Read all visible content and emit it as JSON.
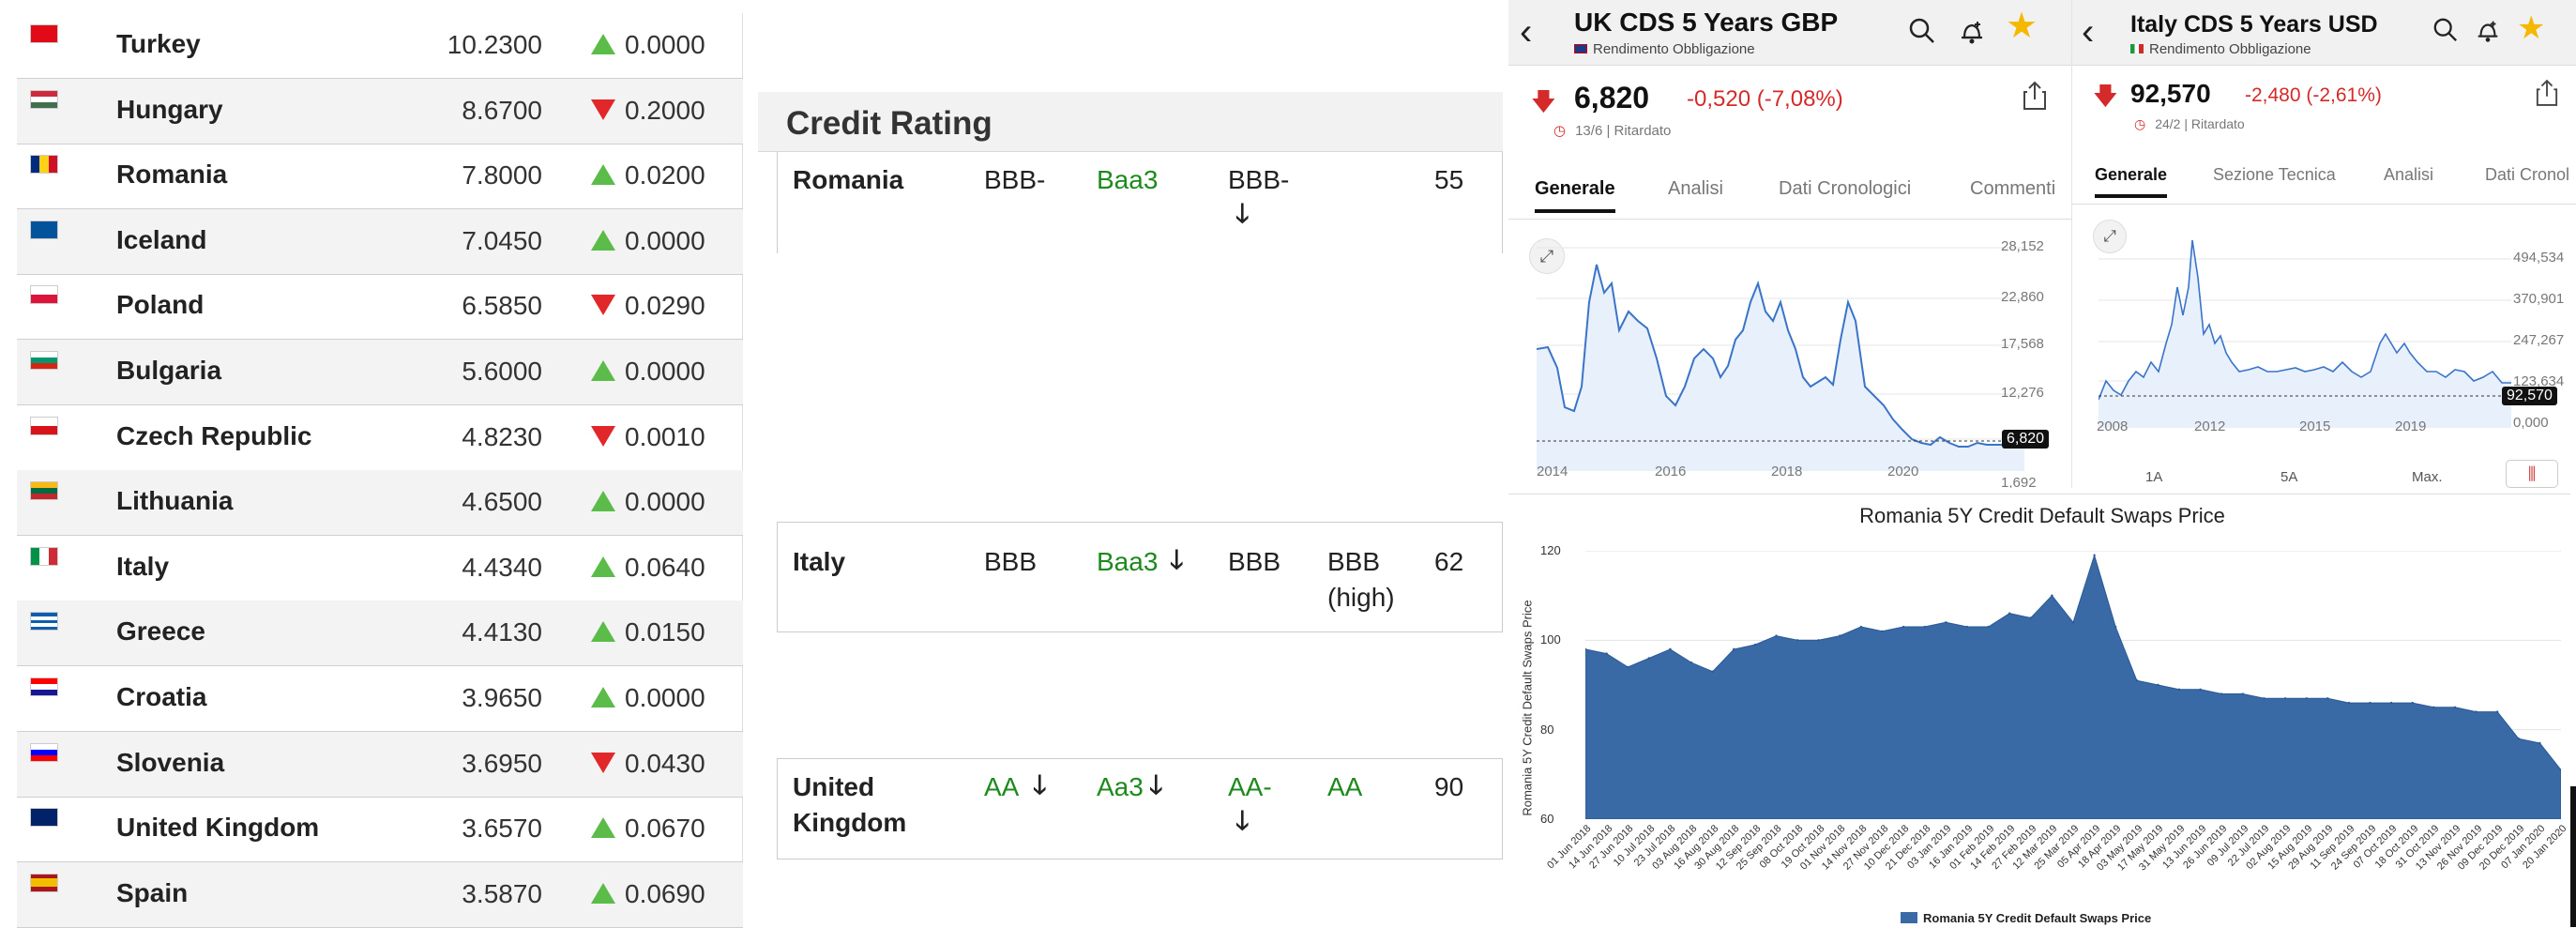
{
  "yields": {
    "rows": [
      {
        "country": "Turkey",
        "value": "10.2300",
        "dir": "up",
        "change": "0.0000",
        "flag": "flag-turkey"
      },
      {
        "country": "Hungary",
        "value": "8.6700",
        "dir": "down",
        "change": "0.2000",
        "flag": "flag-hungary"
      },
      {
        "country": "Romania",
        "value": "7.8000",
        "dir": "up",
        "change": "0.0200",
        "flag": "flag-romania"
      },
      {
        "country": "Iceland",
        "value": "7.0450",
        "dir": "up",
        "change": "0.0000",
        "flag": "flag-iceland"
      },
      {
        "country": "Poland",
        "value": "6.5850",
        "dir": "down",
        "change": "0.0290",
        "flag": "flag-poland"
      },
      {
        "country": "Bulgaria",
        "value": "5.6000",
        "dir": "up",
        "change": "0.0000",
        "flag": "flag-bulgaria"
      },
      {
        "country": "Czech Republic",
        "value": "4.8230",
        "dir": "down",
        "change": "0.0010",
        "flag": "flag-czech-republic"
      },
      {
        "country": "Lithuania",
        "value": "4.6500",
        "dir": "up",
        "change": "0.0000",
        "flag": "flag-lithuania"
      },
      {
        "country": "Italy",
        "value": "4.4340",
        "dir": "up",
        "change": "0.0640",
        "flag": "flag-italy"
      },
      {
        "country": "Greece",
        "value": "4.4130",
        "dir": "up",
        "change": "0.0150",
        "flag": "flag-greece"
      },
      {
        "country": "Croatia",
        "value": "3.9650",
        "dir": "up",
        "change": "0.0000",
        "flag": "flag-croatia"
      },
      {
        "country": "Slovenia",
        "value": "3.6950",
        "dir": "down",
        "change": "0.0430",
        "flag": "flag-slovenia"
      },
      {
        "country": "United Kingdom",
        "value": "3.6570",
        "dir": "up",
        "change": "0.0670",
        "flag": "flag-united-kingdom"
      },
      {
        "country": "Spain",
        "value": "3.5870",
        "dir": "up",
        "change": "0.0690",
        "flag": "flag-spain"
      }
    ],
    "colors": {
      "up": "#5cbc4a",
      "down": "#e2272b"
    }
  },
  "credit_rating": {
    "title": "Credit Rating",
    "down_arrow_icon": "arrow-down-icon",
    "romania": {
      "country": "Romania",
      "sp": "BBB-",
      "moodys": "Baa3",
      "fitch": "BBB-",
      "score": "55"
    },
    "italy": {
      "country": "Italy",
      "sp": "BBB",
      "moodys": "Baa3",
      "fitch": "BBB",
      "dbrs_line1": "BBB",
      "dbrs_line2": "(high)",
      "score": "62"
    },
    "uk": {
      "country_line1": "United",
      "country_line2": "Kingdom",
      "sp": "AA",
      "moodys": "Aa3",
      "fitch": "AA-",
      "dbrs": "AA",
      "score": "90"
    }
  },
  "uk_cds": {
    "title": "UK CDS 5 Years GBP",
    "subtitle": "Rendimento Obbligazione",
    "price": "6,820",
    "change": "-0,520 (-7,08%)",
    "meta": "13/6 | Ritardato",
    "tabs": [
      "Generale",
      "Analisi",
      "Dati Cronologici",
      "Commenti"
    ],
    "active_tab": "Generale",
    "yticks": [
      "28,152",
      "22,860",
      "17,568",
      "12,276",
      "6,820",
      "1,692"
    ],
    "xticks": [
      "2014",
      "2016",
      "2018",
      "2020"
    ],
    "icons": [
      "back-chevron-icon",
      "search-icon",
      "bell-plus-icon",
      "star-icon",
      "share-icon",
      "expand-icon"
    ]
  },
  "italy_cds": {
    "title": "Italy CDS 5 Years USD",
    "subtitle": "Rendimento Obbligazione",
    "price": "92,570",
    "change": "-2,480 (-2,61%)",
    "meta": "24/2 | Ritardato",
    "tabs": [
      "Generale",
      "Sezione Tecnica",
      "Analisi",
      "Dati Cronol"
    ],
    "active_tab": "Generale",
    "yticks": [
      "494,534",
      "370,901",
      "247,267",
      "123,634",
      "92,570",
      "0,000"
    ],
    "xticks": [
      "2008",
      "2012",
      "2015",
      "2019"
    ],
    "range_buttons": [
      "1A",
      "5A",
      "Max."
    ],
    "icons": [
      "back-chevron-icon",
      "search-icon",
      "bell-plus-icon",
      "star-icon",
      "share-icon",
      "expand-icon",
      "candlestick-icon"
    ]
  },
  "romania_chart": {
    "chart_data": {
      "type": "area",
      "title": "Romania 5Y Credit Default Swaps Price",
      "ylabel": "Romania 5Y Credit Default Swaps Price",
      "xlabel": "",
      "ylim": [
        60,
        120
      ],
      "yticks": [
        60,
        80,
        100,
        120
      ],
      "legend": "bottom",
      "grid": true,
      "series": [
        {
          "name": "Romania 5Y Credit Default Swaps Price",
          "color": "#3a6aa6"
        }
      ],
      "x": [
        "01 Jun 2018",
        "14 Jun 2018",
        "27 Jun 2018",
        "10 Jul 2018",
        "23 Jul 2018",
        "03 Aug 2018",
        "16 Aug 2018",
        "30 Aug 2018",
        "12 Sep 2018",
        "25 Sep 2018",
        "08 Oct 2018",
        "19 Oct 2018",
        "01 Nov 2018",
        "14 Nov 2018",
        "27 Nov 2018",
        "10 Dec 2018",
        "21 Dec 2018",
        "03 Jan 2019",
        "16 Jan 2019",
        "01 Feb 2019",
        "14 Feb 2019",
        "27 Feb 2019",
        "12 Mar 2019",
        "25 Mar 2019",
        "05 Apr 2019",
        "18 Apr 2019",
        "03 May 2019",
        "17 May 2019",
        "31 May 2019",
        "13 Jun 2019",
        "26 Jun 2019",
        "09 Jul 2019",
        "22 Jul 2019",
        "02 Aug 2019",
        "15 Aug 2019",
        "29 Aug 2019",
        "11 Sep 2019",
        "24 Sep 2019",
        "07 Oct 2019",
        "18 Oct 2019",
        "31 Oct 2019",
        "13 Nov 2019",
        "26 Nov 2019",
        "09 Dec 2019",
        "20 Dec 2019",
        "07 Jan 2020",
        "20 Jan 2020"
      ],
      "values": [
        98,
        97,
        94,
        96,
        98,
        95,
        93,
        98,
        99,
        101,
        100,
        100,
        101,
        103,
        102,
        103,
        103,
        104,
        103,
        103,
        106,
        105,
        110,
        104,
        119,
        103,
        91,
        90,
        89,
        89,
        88,
        88,
        87,
        87,
        87,
        87,
        86,
        86,
        86,
        86,
        85,
        85,
        84,
        84,
        78,
        77,
        71
      ]
    }
  }
}
